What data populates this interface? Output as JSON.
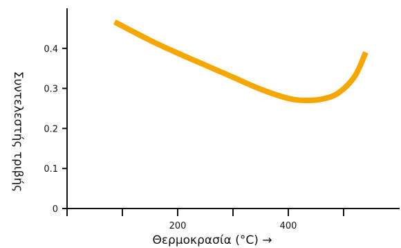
{
  "chart_data": {
    "type": "line",
    "xlabel": "Θερμοκρασία (°C) →",
    "ylabel": "Συντελεστής τριβής",
    "xlim": [
      0,
      600
    ],
    "ylim": [
      0,
      0.5
    ],
    "x_ticks": [
      {
        "value": 100,
        "label": ""
      },
      {
        "value": 200,
        "label": "200"
      },
      {
        "value": 300,
        "label": ""
      },
      {
        "value": 400,
        "label": "400"
      },
      {
        "value": 500,
        "label": ""
      }
    ],
    "y_ticks": [
      {
        "value": 0,
        "label": "0"
      },
      {
        "value": 0.1,
        "label": "0.1"
      },
      {
        "value": 0.2,
        "label": "0.2"
      },
      {
        "value": 0.3,
        "label": "0.3"
      },
      {
        "value": 0.4,
        "label": "0.4"
      }
    ],
    "grid": false,
    "line_color": "#f5a700",
    "series": [
      {
        "x": [
          86,
          150,
          200,
          250,
          300,
          350,
          400,
          430,
          460,
          490,
          520,
          540
        ],
        "y": [
          0.466,
          0.42,
          0.388,
          0.358,
          0.328,
          0.298,
          0.275,
          0.27,
          0.273,
          0.288,
          0.33,
          0.39
        ]
      }
    ]
  }
}
